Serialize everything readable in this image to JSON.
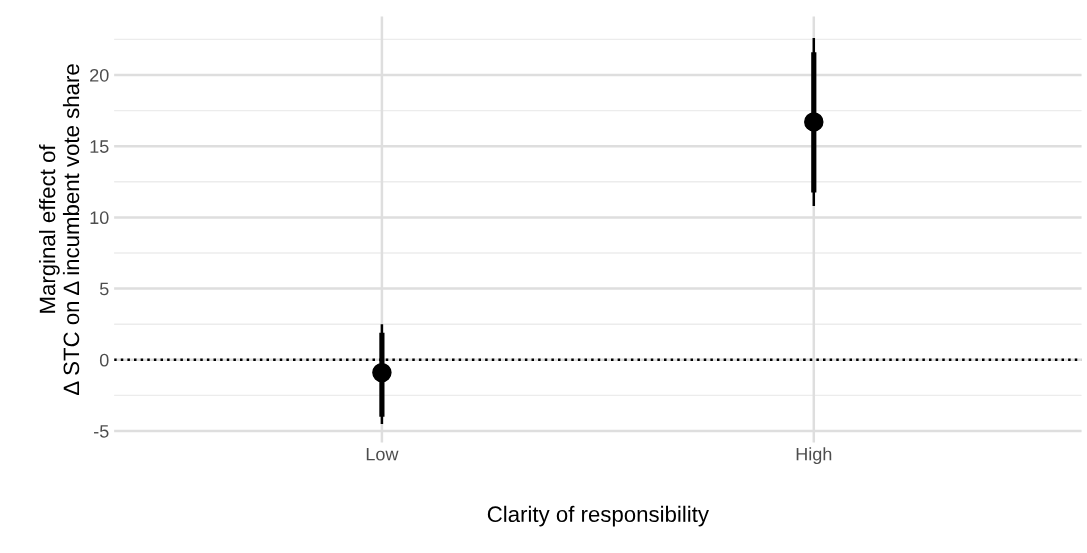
{
  "chart_data": {
    "type": "scatter",
    "xlabel": "Clarity of responsibility",
    "ylabel": "Marginal effect of\nΔ STC on Δ incumbent vote share",
    "categories": [
      "Low",
      "High"
    ],
    "series": [
      {
        "type": "bar",
        "color": "#000000",
        "base": [
          -4.0,
          11.75
        ],
        "values": [
          5.9,
          9.85
        ]
      },
      {
        "color": "#000000",
        "values": [
          -0.9,
          16.7
        ],
        "errors": [
          [
            -4.5,
            2.5
          ],
          [
            10.8,
            22.6
          ]
        ]
      }
    ],
    "ylim": [
      -5.8,
      24.1
    ],
    "yticks": [
      -5,
      0,
      5,
      10,
      15,
      20
    ],
    "grid": true,
    "marker": "circle",
    "ref_lines": [
      {
        "axis": "y",
        "value": 0,
        "line_style": "dotted",
        "color": "#000000"
      }
    ]
  }
}
